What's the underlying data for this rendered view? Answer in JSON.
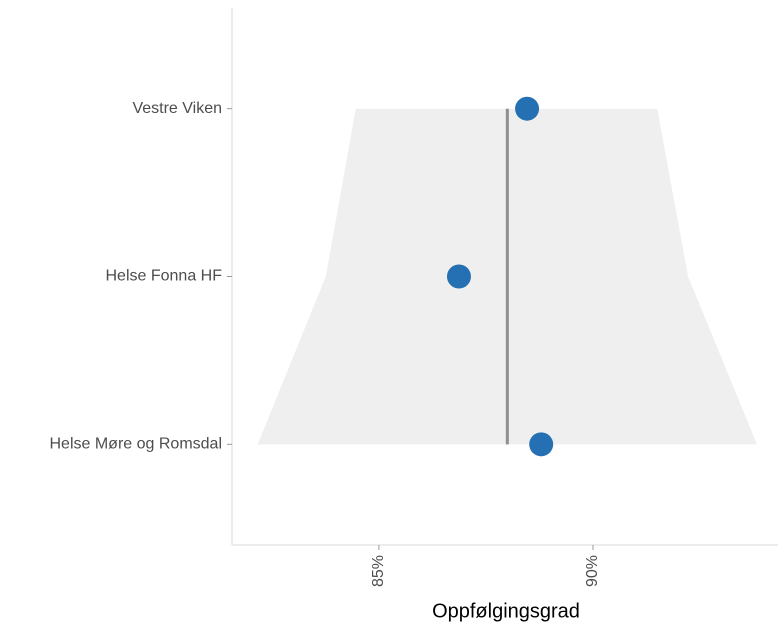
{
  "chart_data": {
    "type": "funnel_dot",
    "x_label": "Oppfølgingsgrad",
    "categories": [
      "Vestre Viken",
      "Helse Fonna HF",
      "Helse Møre og Romsdal"
    ],
    "values": [
      88.46,
      86.87,
      88.79
    ],
    "color": "#2470b3",
    "reference": 88.0,
    "reference_color": "#8f8f8f",
    "band_lower": [
      84.46,
      83.76,
      82.17
    ],
    "band_upper": [
      91.5,
      92.22,
      93.83
    ],
    "band_color": "#efefef",
    "xlim": [
      81.57,
      94.32
    ],
    "xticks": [
      {
        "value": 85,
        "label": "85%"
      },
      {
        "value": 90,
        "label": "90%"
      }
    ]
  }
}
